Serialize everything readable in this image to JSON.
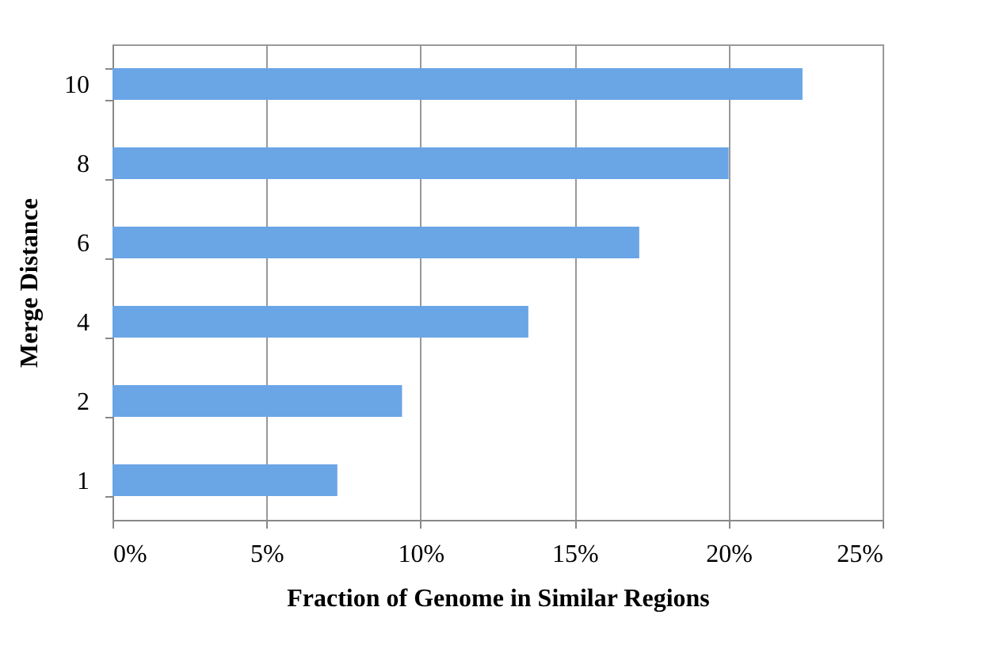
{
  "chart_data": {
    "type": "bar",
    "orientation": "horizontal",
    "xlabel": "Fraction of Genome in Similar Regions",
    "ylabel": "Merge Distance",
    "categories": [
      "10",
      "8",
      "6",
      "4",
      "2",
      "1"
    ],
    "values": [
      22.4,
      20.0,
      17.1,
      13.5,
      9.4,
      7.3
    ],
    "color": "#6aa5e6",
    "xlim": [
      0,
      25
    ],
    "xticks": [
      {
        "value": 0,
        "label": "0%"
      },
      {
        "value": 5,
        "label": "5%"
      },
      {
        "value": 10,
        "label": "10%"
      },
      {
        "value": 15,
        "label": "15%"
      },
      {
        "value": 20,
        "label": "20%"
      },
      {
        "value": 25,
        "label": "25%"
      }
    ],
    "grid": "x"
  }
}
